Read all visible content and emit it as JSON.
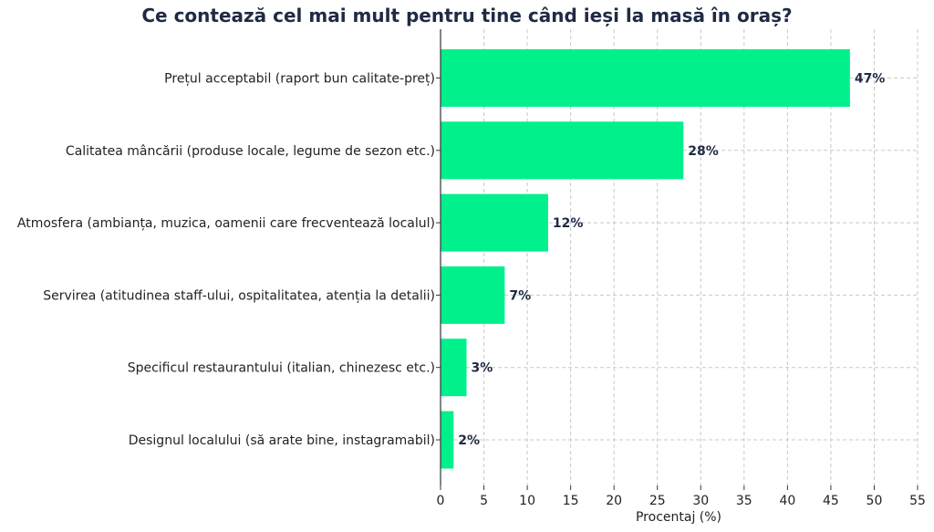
{
  "chart_data": {
    "type": "bar",
    "orientation": "horizontal",
    "title": "Ce contează cel mai mult pentru tine când ieși la masă în oraș?",
    "xlabel": "Procentaj (%)",
    "ylabel": "",
    "xlim": [
      0,
      55
    ],
    "xticks": [
      0,
      5,
      10,
      15,
      20,
      25,
      30,
      35,
      40,
      45,
      50,
      55
    ],
    "grid": true,
    "bar_color": "#00f08c",
    "categories": [
      "Prețul acceptabil (raport bun calitate-preț)",
      "Calitatea mâncării (produse locale, legume de sezon etc.)",
      "Atmosfera (ambianța, muzica, oamenii care frecventează localul)",
      "Servirea (atitudinea staff-ului, ospitalitatea, atenția la detalii)",
      "Specificul restaurantului (italian, chinezesc etc.)",
      "Designul localului (să arate bine, instagramabil)"
    ],
    "values": [
      47.2,
      28,
      12.4,
      7.4,
      3,
      1.5
    ],
    "data_labels": [
      "47%",
      "28%",
      "12%",
      "7%",
      "3%",
      "2%"
    ]
  }
}
